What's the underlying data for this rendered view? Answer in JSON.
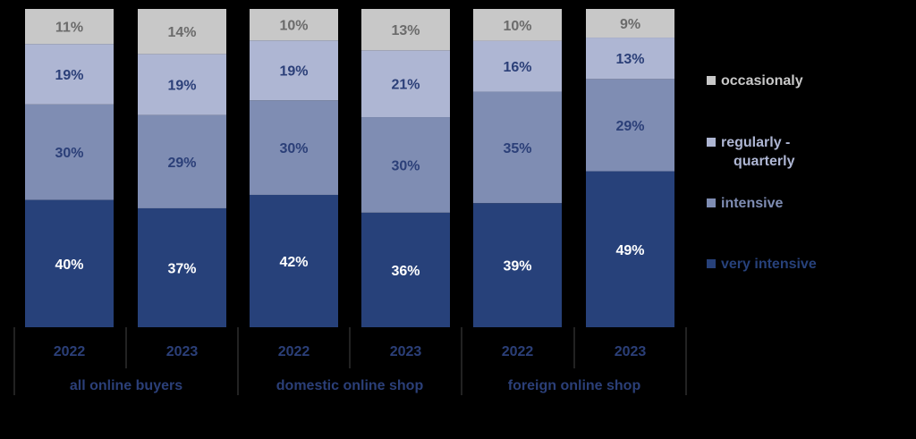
{
  "chart_data": {
    "type": "bar",
    "stacked": true,
    "ylim": [
      0,
      100
    ],
    "categories": [
      {
        "year": "2022",
        "group": "all online buyers"
      },
      {
        "year": "2023",
        "group": "all online buyers"
      },
      {
        "year": "2022",
        "group": "domestic online shop"
      },
      {
        "year": "2023",
        "group": "domestic online shop"
      },
      {
        "year": "2022",
        "group": "foreign online shop"
      },
      {
        "year": "2023",
        "group": "foreign online shop"
      }
    ],
    "groups": [
      "all online buyers",
      "domestic online shop",
      "foreign online shop"
    ],
    "series": [
      {
        "name": "very intensive",
        "values": [
          40,
          37,
          42,
          36,
          39,
          49
        ],
        "labels": [
          "40%",
          "37%",
          "42%",
          "36%",
          "39%",
          "49%"
        ],
        "color": "#27417a",
        "label_color": "#ffffff"
      },
      {
        "name": "intensive",
        "values": [
          30,
          29,
          30,
          30,
          35,
          29
        ],
        "labels": [
          "30%",
          "29%",
          "30%",
          "30%",
          "35%",
          "29%"
        ],
        "color": "#7f8db3",
        "label_color": "#2b3f78"
      },
      {
        "name": "regularly - quarterly",
        "values": [
          19,
          19,
          19,
          21,
          16,
          13
        ],
        "labels": [
          "19%",
          "19%",
          "19%",
          "21%",
          "16%",
          "13%"
        ],
        "color": "#aeb6d3",
        "label_color": "#2b3f78"
      },
      {
        "name": "occasionaly",
        "values": [
          11,
          14,
          10,
          13,
          10,
          9
        ],
        "labels": [
          "11%",
          "14%",
          "10%",
          "13%",
          "10%",
          "9%"
        ],
        "color": "#c8c8c8",
        "label_color": "#6b6b6b"
      }
    ],
    "legend": {
      "position": "right",
      "items": [
        {
          "label_lines": [
            "occasionaly"
          ],
          "color": "#c8c8c8"
        },
        {
          "label_lines": [
            "regularly -",
            "quarterly"
          ],
          "color": "#aeb6d3"
        },
        {
          "label_lines": [
            "intensive"
          ],
          "color": "#7f8db3"
        },
        {
          "label_lines": [
            "very intensive"
          ],
          "color": "#27417a"
        }
      ]
    },
    "axis_text_color": "#2b3f78",
    "divider_color": "#444444",
    "background": "#000000"
  }
}
